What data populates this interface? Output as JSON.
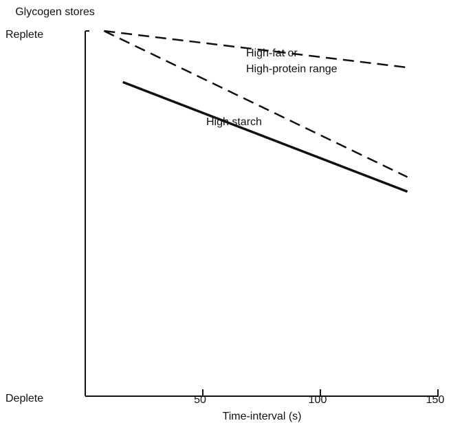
{
  "chart_data": {
    "type": "line",
    "ylabel": "Glycogen stores",
    "xlabel": "Time-interval (s)",
    "xlim": [
      0,
      150
    ],
    "xticks": [
      50,
      100,
      150
    ],
    "ylim": [
      0,
      100
    ],
    "yticks": [
      {
        "value": 0,
        "label": "Deplete"
      },
      {
        "value": 100,
        "label": "Replete"
      }
    ],
    "annotations": [
      "High-fat or",
      "High-protein range"
    ],
    "series": [
      {
        "color": "#111111",
        "style": "dashed",
        "x": [
          8,
          137
        ],
        "values": [
          100,
          90
        ]
      },
      {
        "color": "#111111",
        "style": "dashed",
        "x": [
          8,
          137
        ],
        "values": [
          100,
          60
        ]
      },
      {
        "name": "High starch",
        "color": "#111111",
        "style": "solid",
        "x": [
          16,
          137
        ],
        "values": [
          86,
          56
        ]
      }
    ]
  }
}
